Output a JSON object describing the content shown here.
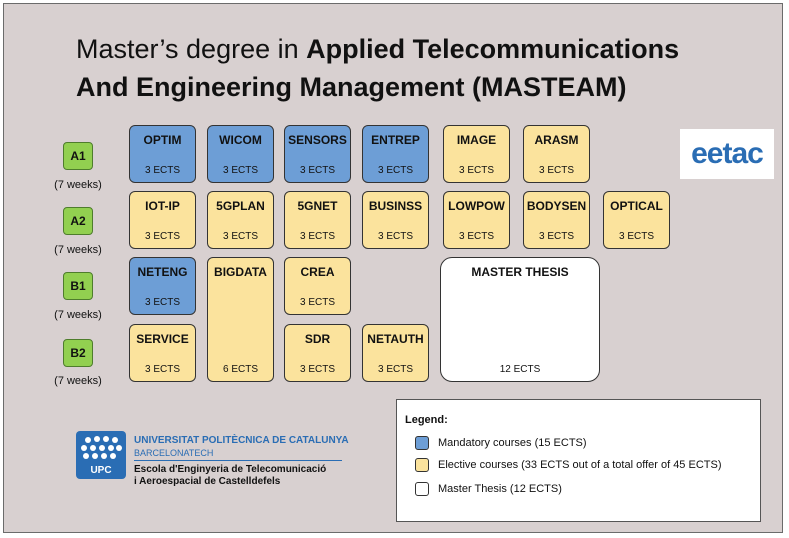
{
  "title": {
    "line1_normal": "Master’s degree in ",
    "line1_bold": "Applied Telecommunications",
    "line2_bold": "And Engineering Management (MASTEAM)"
  },
  "periods": [
    {
      "label": "A1",
      "weeks": "(7 weeks)"
    },
    {
      "label": "A2",
      "weeks": "(7 weeks)"
    },
    {
      "label": "B1",
      "weeks": "(7 weeks)"
    },
    {
      "label": "B2",
      "weeks": "(7 weeks)"
    }
  ],
  "courses": [
    {
      "name": "OPTIM",
      "ects": "3 ECTS",
      "kind": "Mandatory"
    },
    {
      "name": "WICOM",
      "ects": "3 ECTS",
      "kind": "Mandatory"
    },
    {
      "name": "SENSORS",
      "ects": "3 ECTS",
      "kind": "Mandatory"
    },
    {
      "name": "ENTREP",
      "ects": "3 ECTS",
      "kind": "Mandatory"
    },
    {
      "name": "IMAGE",
      "ects": "3 ECTS",
      "kind": "Elective"
    },
    {
      "name": "ARASM",
      "ects": "3 ECTS",
      "kind": "Elective"
    },
    {
      "name": "IOT-IP",
      "ects": "3 ECTS",
      "kind": "Elective"
    },
    {
      "name": "5GPLAN",
      "ects": "3 ECTS",
      "kind": "Elective"
    },
    {
      "name": "5GNET",
      "ects": "3 ECTS",
      "kind": "Elective"
    },
    {
      "name": "BUSINSS",
      "ects": "3 ECTS",
      "kind": "Elective"
    },
    {
      "name": "LOWPOW",
      "ects": "3 ECTS",
      "kind": "Elective"
    },
    {
      "name": "BODYSEN",
      "ects": "3 ECTS",
      "kind": "Elective"
    },
    {
      "name": "OPTICAL",
      "ects": "3 ECTS",
      "kind": "Elective"
    },
    {
      "name": "NETENG",
      "ects": "3 ECTS",
      "kind": "Mandatory"
    },
    {
      "name": "BIGDATA",
      "ects": "6 ECTS",
      "kind": "Elective"
    },
    {
      "name": "CREA",
      "ects": "3 ECTS",
      "kind": "Elective"
    },
    {
      "name": "MASTER THESIS",
      "ects": "12 ECTS",
      "kind": "Thesis"
    },
    {
      "name": "SERVICE",
      "ects": "3 ECTS",
      "kind": "Elective"
    },
    {
      "name": "SDR",
      "ects": "3 ECTS",
      "kind": "Elective"
    },
    {
      "name": "NETAUTH",
      "ects": "3 ECTS",
      "kind": "Elective"
    }
  ],
  "logo_text": "eetac",
  "legend": {
    "title": "Legend:",
    "items": [
      {
        "label": "Mandatory courses (15 ECTS)",
        "color": "#6d9ed6"
      },
      {
        "label": "Elective courses (33 ECTS out of a total offer of 45 ECTS)",
        "color": "#fbe39d"
      },
      {
        "label": "Master Thesis (12 ECTS)",
        "color": "#ffffff"
      }
    ]
  },
  "university": {
    "line1": "UNIVERSITAT POLITÈCNICA DE CATALUNYA",
    "line2": "BARCELONATECH",
    "line3": "Escola d'Enginyeria de Telecomunicació",
    "line4": "i Aeroespacial de Castelldefels",
    "badge": "UPC"
  },
  "colors": {
    "mandatory": "#6d9ed6",
    "elective": "#fbe39d",
    "thesis": "#ffffff",
    "period": "#92d050",
    "brand_blue": "#2a6db4"
  }
}
